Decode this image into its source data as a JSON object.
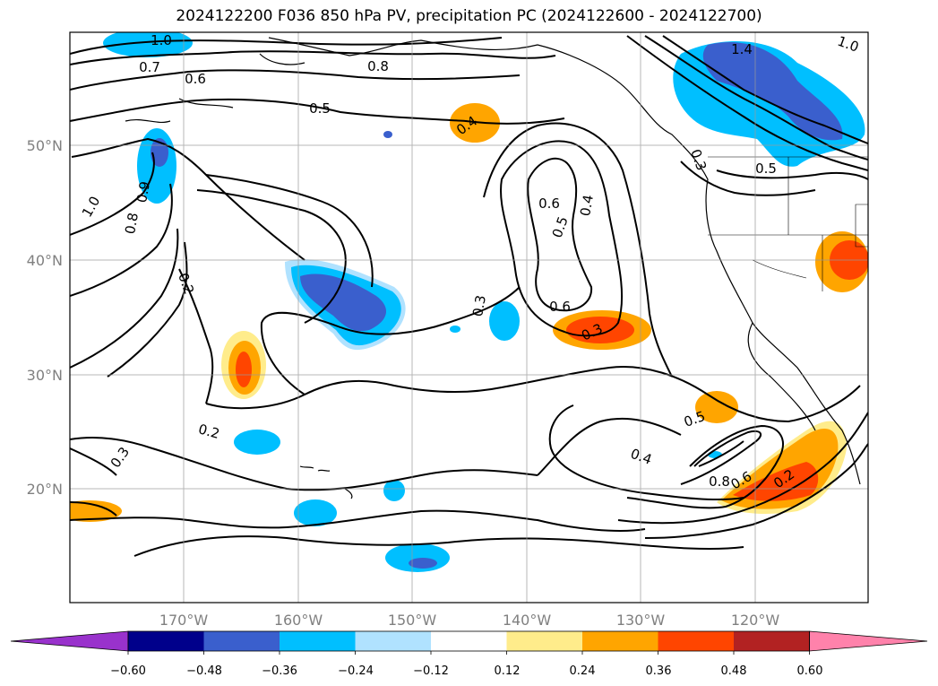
{
  "title": "2024122200 F036 850 hPa PV, precipitation PC (2024122600 - 2024122700)",
  "map": {
    "lat_labels": [
      "50°N",
      "40°N",
      "30°N",
      "20°N"
    ],
    "lon_labels": [
      "170°W",
      "160°W",
      "150°W",
      "140°W",
      "130°W",
      "120°W"
    ],
    "contour_labels": [
      "1.0",
      "0.7",
      "0.6",
      "0.5",
      "0.4",
      "0.8",
      "1.4",
      "0.5",
      "0.3",
      "1.0",
      "0.9",
      "0.8",
      "0.2",
      "0.6",
      "0.5",
      "0.4",
      "0.6",
      "0.3",
      "0.3",
      "0.2",
      "0.3",
      "0.5",
      "0.4",
      "0.8",
      "0.6",
      "0.2",
      "1.0"
    ]
  },
  "colorbar": {
    "ticks": [
      "−0.60",
      "−0.48",
      "−0.36",
      "−0.24",
      "−0.12",
      "0.12",
      "0.24",
      "0.36",
      "0.48",
      "0.60"
    ],
    "colors": [
      "#9932cc",
      "#00008b",
      "#3a5fcd",
      "#00bfff",
      "#b0e2ff",
      "#ffffff",
      "#ffec8b",
      "#ffa500",
      "#ff4500",
      "#b22222",
      "#ff82ab"
    ]
  }
}
